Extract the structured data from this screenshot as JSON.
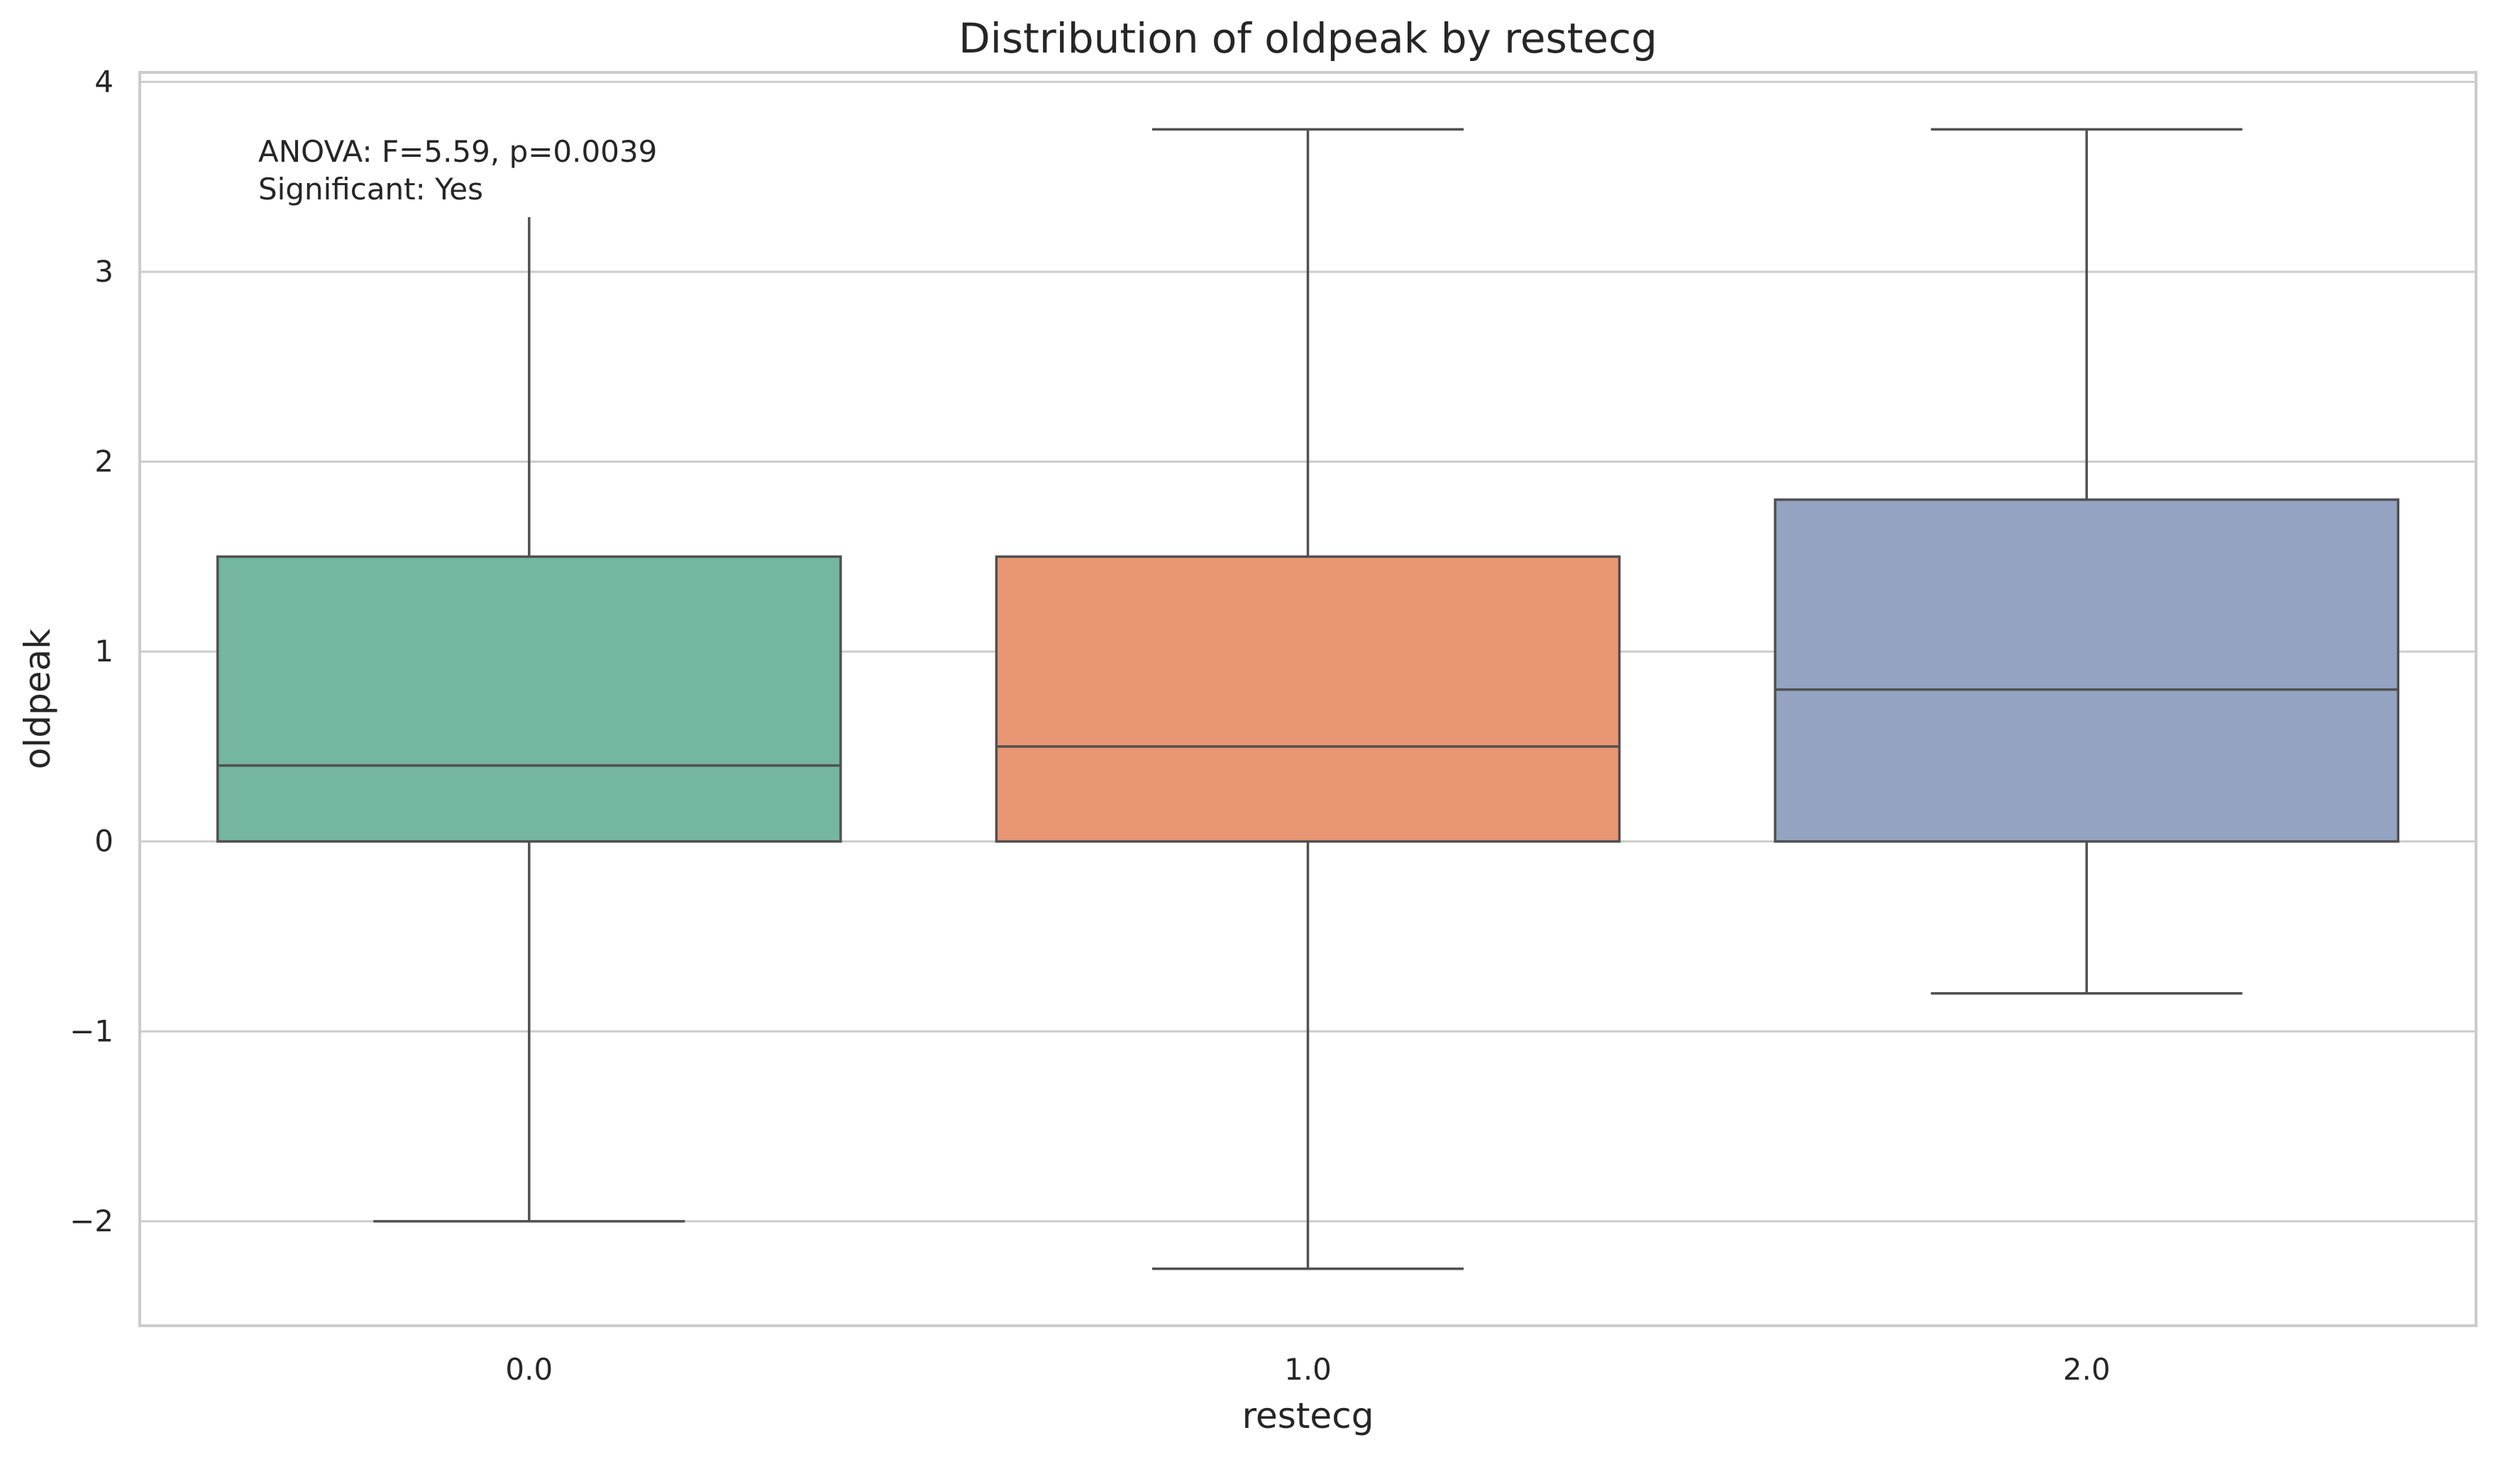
{
  "chart_data": {
    "type": "box",
    "title": "Distribution of oldpeak by restecg",
    "xlabel": "restecg",
    "ylabel": "oldpeak",
    "ylim": [
      -2.55,
      4.05
    ],
    "yticks": [
      -2,
      -1,
      0,
      1,
      2,
      3,
      4
    ],
    "ytick_labels": [
      "−2",
      "−1",
      "0",
      "1",
      "2",
      "3",
      "4"
    ],
    "grid": true,
    "categories": [
      "0.0",
      "1.0",
      "2.0"
    ],
    "boxes": [
      {
        "category": "0.0",
        "whisker_low": -2.0,
        "q1": 0.0,
        "median": 0.4,
        "q3": 1.5,
        "whisker_high": 3.75,
        "color": "#74b6a0"
      },
      {
        "category": "1.0",
        "whisker_low": -2.25,
        "q1": 0.0,
        "median": 0.5,
        "q3": 1.5,
        "whisker_high": 3.75,
        "color": "#e99675"
      },
      {
        "category": "2.0",
        "whisker_low": -0.8,
        "q1": 0.0,
        "median": 0.8,
        "q3": 1.8,
        "whisker_high": 3.75,
        "color": "#94a3c2"
      }
    ],
    "annotation": {
      "lines": [
        "ANOVA: F=5.59, p=0.0039",
        "Significant: Yes"
      ]
    },
    "colors": {
      "grid": "#cccccc",
      "line": "#505050",
      "text": "#262626"
    }
  }
}
